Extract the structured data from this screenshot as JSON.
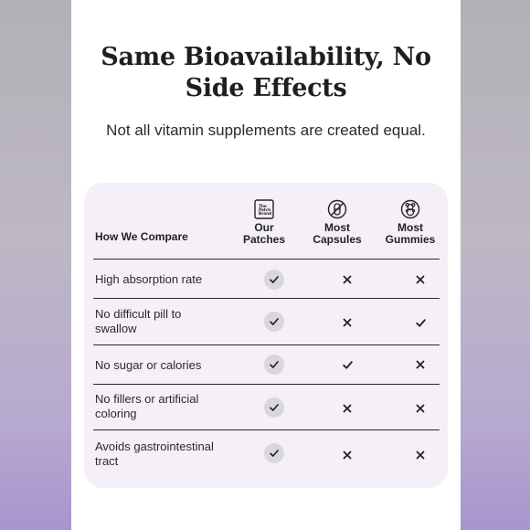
{
  "headline": {
    "line1": "Same Bioavailability, No",
    "line2": "Side Effects"
  },
  "subhead": "Not all vitamin supplements are created equal.",
  "table": {
    "compare_label": "How We Compare",
    "columns": [
      {
        "line1": "Our",
        "line2": "Patches",
        "icon": "brand-logo-icon",
        "logo_text": "The Patch Brand"
      },
      {
        "line1": "Most",
        "line2": "Capsules",
        "icon": "no-capsule-icon"
      },
      {
        "line1": "Most",
        "line2": "Gummies",
        "icon": "gummy-bear-icon"
      }
    ],
    "rows": [
      {
        "line1": "High absorption rate",
        "line2": "",
        "values": [
          "check",
          "cross",
          "cross"
        ]
      },
      {
        "line1": "No difficult pill to",
        "line2": "swallow",
        "values": [
          "check",
          "cross",
          "check"
        ]
      },
      {
        "line1": "No sugar or calories",
        "line2": "",
        "values": [
          "check",
          "check",
          "cross"
        ]
      },
      {
        "line1": "No fillers or artificial",
        "line2": "coloring",
        "values": [
          "check",
          "cross",
          "cross"
        ]
      },
      {
        "line1": "Avoids gastrointestinal",
        "line2": "tract",
        "values": [
          "check",
          "cross",
          "cross"
        ]
      }
    ]
  },
  "colors": {
    "card_bg": "#f5f0f8",
    "badge_bg": "#d9d6dc",
    "text": "#222222"
  }
}
